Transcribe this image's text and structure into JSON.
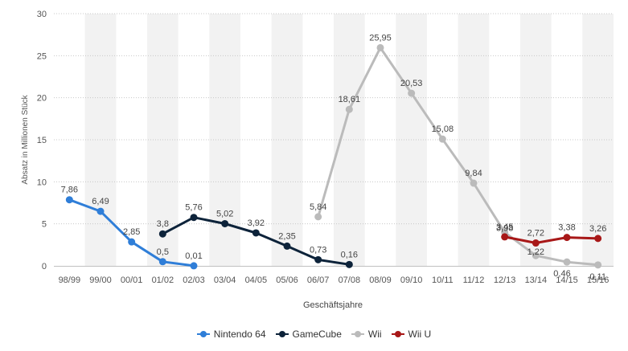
{
  "chart_data": {
    "type": "line",
    "categories": [
      "98/99",
      "99/00",
      "00/01",
      "01/02",
      "02/03",
      "03/04",
      "04/05",
      "05/06",
      "06/07",
      "07/08",
      "08/09",
      "09/10",
      "10/11",
      "11/12",
      "12/13",
      "13/14",
      "14/15",
      "15/16"
    ],
    "xlabel": "Geschäftsjahre",
    "ylabel": "Absatz in Millionen Stück",
    "ylim": [
      0,
      30
    ],
    "yticks": [
      0,
      5,
      10,
      15,
      20,
      25,
      30
    ],
    "grid": true,
    "legend_position": "bottom",
    "series": [
      {
        "name": "Nintendo 64",
        "color": "#2f7ed8",
        "values": [
          7.86,
          6.49,
          2.85,
          0.5,
          0.01,
          null,
          null,
          null,
          null,
          null,
          null,
          null,
          null,
          null,
          null,
          null,
          null,
          null
        ],
        "labels": [
          "7,86",
          "6,49",
          "2,85",
          "0,5",
          "0,01",
          null,
          null,
          null,
          null,
          null,
          null,
          null,
          null,
          null,
          null,
          null,
          null,
          null
        ]
      },
      {
        "name": "GameCube",
        "color": "#0d233a",
        "values": [
          null,
          null,
          null,
          3.8,
          5.76,
          5.02,
          3.92,
          2.35,
          0.73,
          0.16,
          null,
          null,
          null,
          null,
          null,
          null,
          null,
          null
        ],
        "labels": [
          null,
          null,
          null,
          "3,8",
          "5,76",
          "5,02",
          "3,92",
          "2,35",
          "0,73",
          "0,16",
          null,
          null,
          null,
          null,
          null,
          null,
          null,
          null
        ]
      },
      {
        "name": "Wii",
        "color": "#bbbbbb",
        "values": [
          null,
          null,
          null,
          null,
          null,
          null,
          null,
          null,
          5.84,
          18.61,
          25.95,
          20.53,
          15.08,
          9.84,
          3.98,
          1.22,
          0.46,
          0.11
        ],
        "labels": [
          null,
          null,
          null,
          null,
          null,
          null,
          null,
          null,
          "5,84",
          "18,61",
          "25,95",
          "20,53",
          "15,08",
          "9,84",
          "3,98",
          "1,22",
          "0,46",
          "0,11"
        ]
      },
      {
        "name": "Wii U",
        "color": "#a81818",
        "values": [
          null,
          null,
          null,
          null,
          null,
          null,
          null,
          null,
          null,
          null,
          null,
          null,
          null,
          null,
          3.45,
          2.72,
          3.38,
          3.26
        ],
        "labels": [
          null,
          null,
          null,
          null,
          null,
          null,
          null,
          null,
          null,
          null,
          null,
          null,
          null,
          null,
          "3,45",
          "2,72",
          "3,38",
          "3,26"
        ]
      }
    ]
  }
}
